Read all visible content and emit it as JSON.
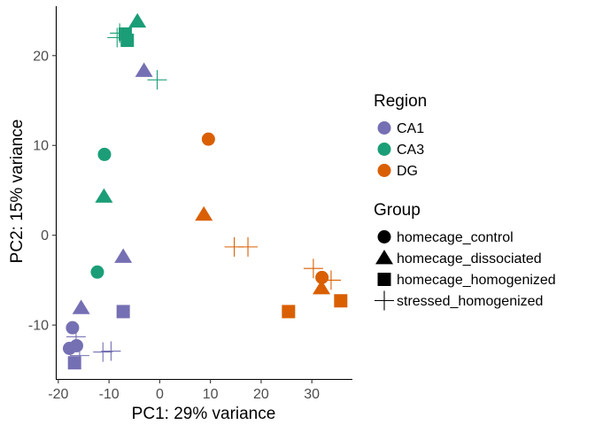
{
  "chart_data": {
    "type": "scatter",
    "xlabel": "PC1: 29% variance",
    "ylabel": "PC2: 15% variance",
    "xlim": [
      -20.5,
      38
    ],
    "ylim": [
      -16,
      25.5
    ],
    "x_ticks": [
      -20,
      -10,
      0,
      10,
      20,
      30
    ],
    "y_ticks": [
      20,
      10,
      0,
      -10
    ],
    "x_tick_labels": [
      "-20",
      "-10",
      "0",
      "10",
      "20",
      "30"
    ],
    "y_tick_labels": [
      "20",
      "10",
      "0",
      "-10"
    ],
    "grid": false,
    "legend_position": "right",
    "legends": [
      {
        "title": "Region",
        "kind": "color",
        "items": [
          {
            "label": "CA1",
            "color": "#7570b3"
          },
          {
            "label": "CA3",
            "color": "#1b9e77"
          },
          {
            "label": "DG",
            "color": "#d95f02"
          }
        ]
      },
      {
        "title": "Group",
        "kind": "shape",
        "items": [
          {
            "label": "homecage_control",
            "shape": "circle"
          },
          {
            "label": "homecage_dissociated",
            "shape": "triangle"
          },
          {
            "label": "homecage_homogenized",
            "shape": "square"
          },
          {
            "label": "stressed_homogenized",
            "shape": "plus"
          }
        ]
      }
    ],
    "points": [
      {
        "x": -17.2,
        "y": -10.3,
        "region": "CA1",
        "group": "homecage_control"
      },
      {
        "x": -17.8,
        "y": -12.6,
        "region": "CA1",
        "group": "homecage_control"
      },
      {
        "x": -16.4,
        "y": -12.3,
        "region": "CA1",
        "group": "homecage_control"
      },
      {
        "x": -15.5,
        "y": -8.1,
        "region": "CA1",
        "group": "homecage_dissociated"
      },
      {
        "x": -7.2,
        "y": -2.4,
        "region": "CA1",
        "group": "homecage_dissociated"
      },
      {
        "x": -3.1,
        "y": 18.3,
        "region": "CA1",
        "group": "homecage_dissociated"
      },
      {
        "x": -7.2,
        "y": -8.5,
        "region": "CA1",
        "group": "homecage_homogenized"
      },
      {
        "x": -16.8,
        "y": -14.2,
        "region": "CA1",
        "group": "homecage_homogenized"
      },
      {
        "x": -16.5,
        "y": -11.3,
        "region": "CA1",
        "group": "stressed_homogenized"
      },
      {
        "x": -15.8,
        "y": -13.4,
        "region": "CA1",
        "group": "stressed_homogenized"
      },
      {
        "x": -11.2,
        "y": -13.0,
        "region": "CA1",
        "group": "stressed_homogenized"
      },
      {
        "x": -9.6,
        "y": -12.9,
        "region": "CA1",
        "group": "stressed_homogenized"
      },
      {
        "x": -10.9,
        "y": 9.0,
        "region": "CA3",
        "group": "homecage_control"
      },
      {
        "x": -12.3,
        "y": -4.1,
        "region": "CA3",
        "group": "homecage_control"
      },
      {
        "x": -11.0,
        "y": 4.3,
        "region": "CA3",
        "group": "homecage_dissociated"
      },
      {
        "x": -4.4,
        "y": 23.8,
        "region": "CA3",
        "group": "homecage_dissociated"
      },
      {
        "x": -6.8,
        "y": 22.4,
        "region": "CA3",
        "group": "homecage_homogenized"
      },
      {
        "x": -6.4,
        "y": 21.7,
        "region": "CA3",
        "group": "homecage_homogenized"
      },
      {
        "x": -7.9,
        "y": 22.5,
        "region": "CA3",
        "group": "stressed_homogenized"
      },
      {
        "x": -8.4,
        "y": 22.0,
        "region": "CA3",
        "group": "stressed_homogenized"
      },
      {
        "x": -0.5,
        "y": 17.3,
        "region": "CA3",
        "group": "stressed_homogenized"
      },
      {
        "x": 9.6,
        "y": 10.7,
        "region": "DG",
        "group": "homecage_control"
      },
      {
        "x": 32.0,
        "y": -4.7,
        "region": "DG",
        "group": "homecage_control"
      },
      {
        "x": 8.7,
        "y": 2.3,
        "region": "DG",
        "group": "homecage_dissociated"
      },
      {
        "x": 31.9,
        "y": -5.9,
        "region": "DG",
        "group": "homecage_dissociated"
      },
      {
        "x": 25.4,
        "y": -8.5,
        "region": "DG",
        "group": "homecage_homogenized"
      },
      {
        "x": 35.7,
        "y": -7.3,
        "region": "DG",
        "group": "homecage_homogenized"
      },
      {
        "x": 14.7,
        "y": -1.3,
        "region": "DG",
        "group": "stressed_homogenized"
      },
      {
        "x": 17.4,
        "y": -1.3,
        "region": "DG",
        "group": "stressed_homogenized"
      },
      {
        "x": 30.3,
        "y": -3.7,
        "region": "DG",
        "group": "stressed_homogenized"
      },
      {
        "x": 33.8,
        "y": -5.0,
        "region": "DG",
        "group": "stressed_homogenized"
      }
    ]
  }
}
